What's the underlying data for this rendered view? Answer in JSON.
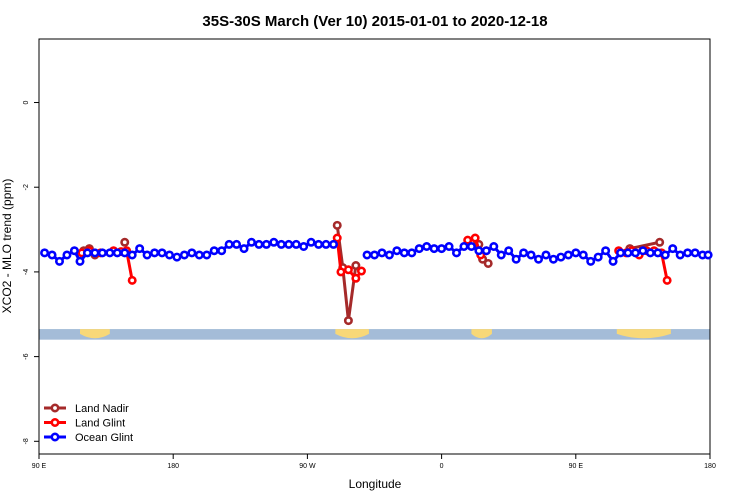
{
  "chart_data": {
    "type": "line",
    "title": "35S-30S March (Ver 10)   2015-01-01 to 2020-12-18",
    "xlabel": "Longitude",
    "ylabel": "XCO2 - MLO trend (ppm)",
    "xlim": [
      0,
      360
    ],
    "ylim": [
      -8.3,
      1.5
    ],
    "x_ticks": [
      {
        "value": 0,
        "label": "90 E"
      },
      {
        "value": 72,
        "label": "180"
      },
      {
        "value": 144,
        "label": "90 W"
      },
      {
        "value": 216,
        "label": "0"
      },
      {
        "value": 288,
        "label": "90 E"
      },
      {
        "value": 360,
        "label": "180"
      }
    ],
    "y_ticks": [
      {
        "value": 0,
        "label": "0"
      },
      {
        "value": -2,
        "label": "-2"
      },
      {
        "value": -4,
        "label": "-4"
      },
      {
        "value": -6,
        "label": "-6"
      },
      {
        "value": -8,
        "label": "-8"
      }
    ],
    "grid": false,
    "legend_position": "bottom-left",
    "land_mask": {
      "y_range": [
        -5.6,
        -5.35
      ],
      "ocean_color": "#a4bcd8",
      "land_color": "#f8d878",
      "land_spans": [
        [
          22,
          38
        ],
        [
          159,
          177
        ],
        [
          232,
          243
        ],
        [
          310,
          339
        ]
      ]
    },
    "series": [
      {
        "name": "Land Nadir",
        "color": "#a52a2a",
        "segments": [
          [
            [
              24,
              -3.5
            ],
            [
              27,
              -3.45
            ],
            [
              30,
              -3.6
            ]
          ],
          [
            [
              46,
              -3.3
            ]
          ],
          [
            [
              160,
              -2.9
            ],
            [
              163,
              -3.9
            ],
            [
              166,
              -5.15
            ],
            [
              170,
              -3.85
            ]
          ],
          [
            [
              232,
              -3.3
            ],
            [
              236,
              -3.35
            ],
            [
              238,
              -3.7
            ],
            [
              241,
              -3.8
            ]
          ],
          [
            [
              317,
              -3.45
            ],
            [
              333,
              -3.3
            ]
          ]
        ]
      },
      {
        "name": "Land Glint",
        "color": "#ff0000",
        "segments": [
          [
            [
              23,
              -3.55
            ],
            [
              27,
              -3.5
            ],
            [
              33,
              -3.55
            ],
            [
              40,
              -3.5
            ],
            [
              44,
              -3.52
            ],
            [
              47,
              -3.5
            ],
            [
              50,
              -4.2
            ]
          ],
          [
            [
              160,
              -3.2
            ],
            [
              162,
              -4.0
            ],
            [
              166,
              -3.95
            ],
            [
              170,
              -4.15
            ],
            [
              173,
              -3.98
            ]
          ],
          [
            [
              230,
              -3.25
            ],
            [
              234,
              -3.2
            ],
            [
              237,
              -3.6
            ],
            [
              240,
              -3.5
            ]
          ],
          [
            [
              311,
              -3.5
            ],
            [
              315,
              -3.55
            ],
            [
              318,
              -3.5
            ],
            [
              322,
              -3.6
            ],
            [
              326,
              -3.5
            ],
            [
              330,
              -3.5
            ],
            [
              334,
              -3.55
            ],
            [
              337,
              -4.2
            ]
          ]
        ]
      },
      {
        "name": "Ocean Glint",
        "color": "#0000ff",
        "segments": [
          [
            [
              3,
              -3.55
            ],
            [
              7,
              -3.6
            ],
            [
              11,
              -3.75
            ],
            [
              15,
              -3.6
            ],
            [
              19,
              -3.5
            ],
            [
              22,
              -3.75
            ],
            [
              26,
              -3.55
            ],
            [
              30,
              -3.55
            ],
            [
              34,
              -3.55
            ],
            [
              38,
              -3.55
            ],
            [
              42,
              -3.55
            ],
            [
              46,
              -3.55
            ],
            [
              50,
              -3.6
            ],
            [
              54,
              -3.45
            ],
            [
              58,
              -3.6
            ],
            [
              62,
              -3.55
            ],
            [
              66,
              -3.55
            ],
            [
              70,
              -3.6
            ],
            [
              74,
              -3.65
            ],
            [
              78,
              -3.6
            ],
            [
              82,
              -3.55
            ],
            [
              86,
              -3.6
            ],
            [
              90,
              -3.6
            ],
            [
              94,
              -3.5
            ],
            [
              98,
              -3.5
            ],
            [
              102,
              -3.35
            ],
            [
              106,
              -3.35
            ],
            [
              110,
              -3.45
            ],
            [
              114,
              -3.3
            ],
            [
              118,
              -3.35
            ],
            [
              122,
              -3.35
            ],
            [
              126,
              -3.3
            ],
            [
              130,
              -3.35
            ],
            [
              134,
              -3.35
            ],
            [
              138,
              -3.35
            ],
            [
              142,
              -3.4
            ],
            [
              146,
              -3.3
            ],
            [
              150,
              -3.35
            ],
            [
              154,
              -3.35
            ],
            [
              158,
              -3.35
            ]
          ],
          [
            [
              176,
              -3.6
            ],
            [
              180,
              -3.6
            ],
            [
              184,
              -3.55
            ],
            [
              188,
              -3.6
            ],
            [
              192,
              -3.5
            ],
            [
              196,
              -3.55
            ],
            [
              200,
              -3.55
            ],
            [
              204,
              -3.45
            ],
            [
              208,
              -3.4
            ],
            [
              212,
              -3.45
            ],
            [
              216,
              -3.45
            ],
            [
              220,
              -3.4
            ],
            [
              224,
              -3.55
            ],
            [
              228,
              -3.4
            ],
            [
              232,
              -3.4
            ],
            [
              236,
              -3.5
            ],
            [
              240,
              -3.5
            ],
            [
              244,
              -3.4
            ],
            [
              248,
              -3.6
            ],
            [
              252,
              -3.5
            ],
            [
              256,
              -3.7
            ],
            [
              260,
              -3.55
            ],
            [
              264,
              -3.6
            ],
            [
              268,
              -3.7
            ],
            [
              272,
              -3.6
            ],
            [
              276,
              -3.7
            ],
            [
              280,
              -3.65
            ],
            [
              284,
              -3.6
            ],
            [
              288,
              -3.55
            ],
            [
              292,
              -3.6
            ],
            [
              296,
              -3.75
            ],
            [
              300,
              -3.65
            ],
            [
              304,
              -3.5
            ],
            [
              308,
              -3.75
            ],
            [
              312,
              -3.55
            ],
            [
              316,
              -3.55
            ],
            [
              320,
              -3.55
            ],
            [
              324,
              -3.5
            ],
            [
              328,
              -3.55
            ],
            [
              332,
              -3.55
            ],
            [
              336,
              -3.6
            ],
            [
              340,
              -3.45
            ],
            [
              344,
              -3.6
            ],
            [
              348,
              -3.55
            ],
            [
              352,
              -3.55
            ],
            [
              356,
              -3.6
            ],
            [
              359,
              -3.6
            ]
          ]
        ]
      }
    ]
  }
}
